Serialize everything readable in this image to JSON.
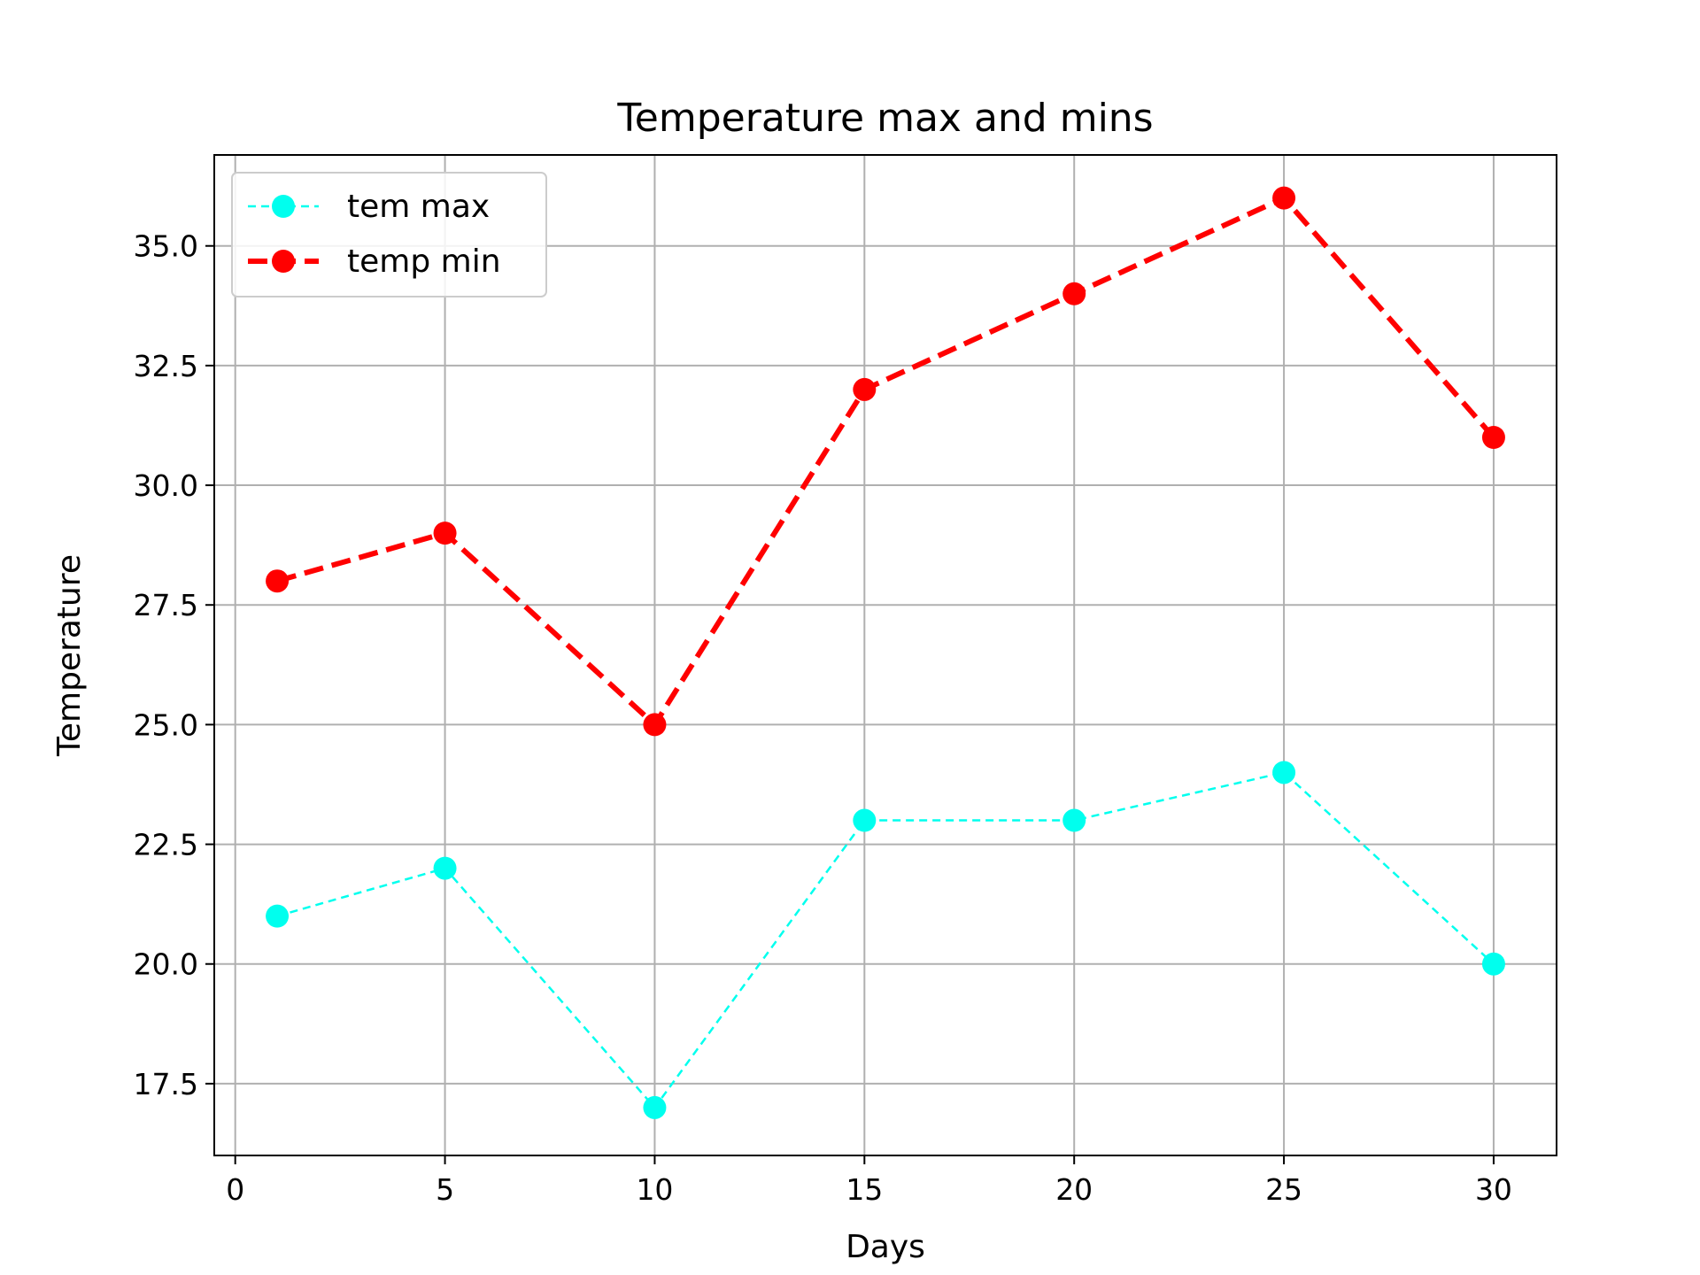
{
  "chart_data": {
    "type": "line",
    "title": "Temperature max and mins",
    "xlabel": "Days",
    "ylabel": "Temperature",
    "xlim": [
      -0.5,
      31.5
    ],
    "ylim": [
      16.0,
      36.9
    ],
    "xticks": [
      0,
      5,
      10,
      15,
      20,
      25,
      30
    ],
    "xtick_labels": [
      "0",
      "5",
      "10",
      "15",
      "20",
      "25",
      "30"
    ],
    "yticks": [
      17.5,
      20.0,
      22.5,
      25.0,
      27.5,
      30.0,
      32.5,
      35.0
    ],
    "ytick_labels": [
      "17.5",
      "20.0",
      "22.5",
      "25.0",
      "27.5",
      "30.0",
      "32.5",
      "35.0"
    ],
    "grid": true,
    "legend_position": "upper-left",
    "x": [
      1,
      5,
      10,
      15,
      20,
      25,
      30
    ],
    "series": [
      {
        "name": "tem max",
        "values": [
          21,
          22,
          17,
          23,
          23,
          24,
          20
        ],
        "color": "#00ffee",
        "line_style": "dashed",
        "marker": "circle"
      },
      {
        "name": "temp min",
        "values": [
          28,
          29,
          25,
          32,
          34,
          36,
          31
        ],
        "color": "#ff0000",
        "line_style": "dashed",
        "marker": "circle"
      }
    ]
  }
}
